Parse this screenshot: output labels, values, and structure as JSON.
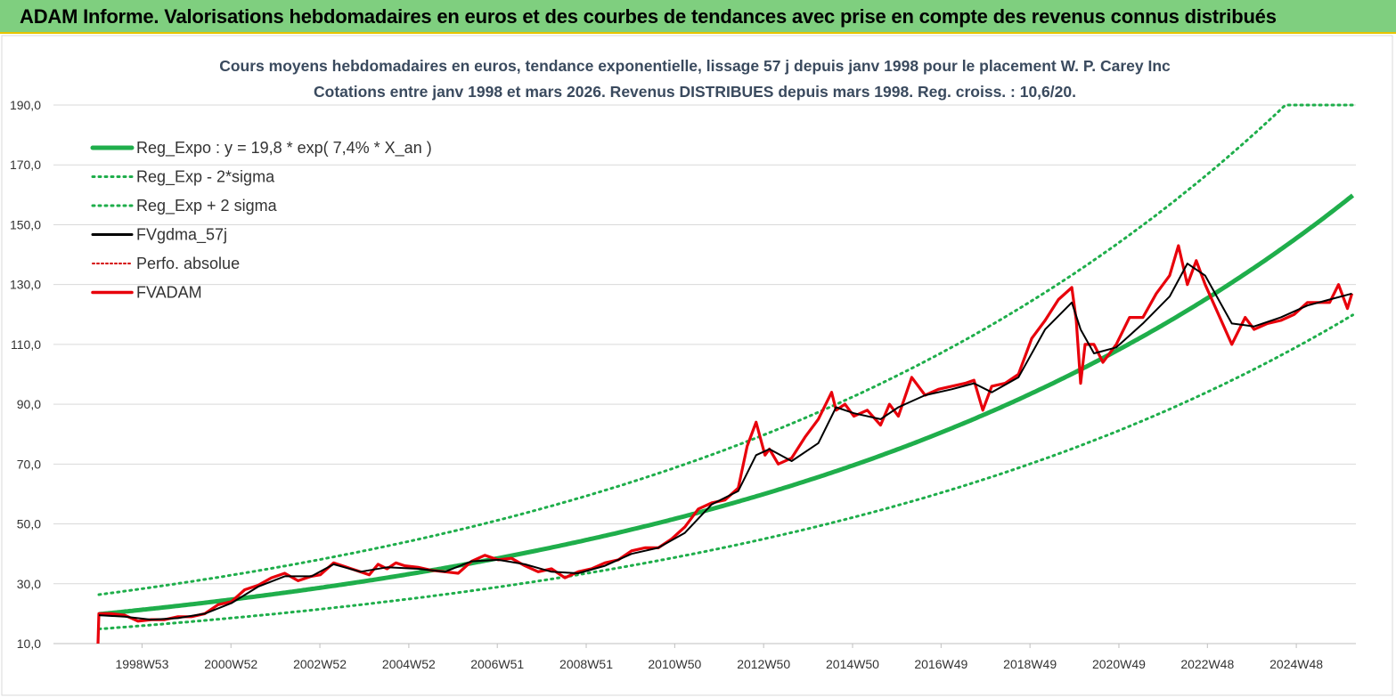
{
  "banner": {
    "title": "ADAM Informe. Valorisations hebdomadaires en euros et des courbes de tendances avec prise en compte des revenus connus distribués"
  },
  "colors": {
    "banner_bg": "#7fcf7f",
    "banner_border": "#e8c400",
    "reg_expo": "#1fae4b",
    "sigma_bands": "#1fae4b",
    "fvgdma": "#000000",
    "perfo": "#d40000",
    "fvadam": "#e8000b"
  },
  "chart_data": {
    "type": "line",
    "title_lines": [
      "Cours moyens hebdomadaires en euros, tendance exponentielle, lissage 57 j depuis janv 1998 pour le placement W. P. Carey Inc",
      "Cotations entre janv 1998 et mars 2026. Revenus DISTRIBUES depuis mars 1998. Reg. croiss. : 10,6/20."
    ],
    "ylim": [
      10,
      190
    ],
    "y_ticks": [
      "10,0",
      "30,0",
      "50,0",
      "70,0",
      "90,0",
      "110,0",
      "130,0",
      "150,0",
      "170,0",
      "190,0"
    ],
    "y_tick_values": [
      10,
      30,
      50,
      70,
      90,
      110,
      130,
      150,
      170,
      190
    ],
    "x_range_years": [
      1998.0,
      2026.25
    ],
    "x_tick_labels": [
      "1998W53",
      "2000W52",
      "2002W52",
      "2004W52",
      "2006W51",
      "2008W51",
      "2010W50",
      "2012W50",
      "2014W50",
      "2016W49",
      "2018W49",
      "2020W49",
      "2022W48",
      "2024W48"
    ],
    "x_tick_years": [
      1998.99,
      2000.99,
      2002.99,
      2004.99,
      2006.98,
      2008.98,
      2010.97,
      2012.97,
      2014.97,
      2016.96,
      2018.96,
      2020.96,
      2022.95,
      2024.95
    ],
    "grid": "horizontal",
    "legend_position": "top-left",
    "legend": [
      {
        "label": "Reg_Expo : y = 19,8 * exp( 7,4% *  X_an )",
        "style": "solid-thick-green"
      },
      {
        "label": "Reg_Exp - 2*sigma",
        "style": "dotted-green"
      },
      {
        "label": "Reg_Exp + 2 sigma",
        "style": "dotted-green"
      },
      {
        "label": "FVgdma_57j",
        "style": "solid-black"
      },
      {
        "label": "Perfo. absolue",
        "style": "dotted-red"
      },
      {
        "label": "FVADAM",
        "style": "solid-red"
      }
    ],
    "regression": {
      "a": 19.8,
      "growth": 0.074,
      "lower_factor": 0.75,
      "upper_factor": 1.33,
      "upper_cap": 200
    },
    "series": [
      {
        "name": "FVADAM",
        "x": [
          1998.0,
          1998.02,
          1998.3,
          1998.6,
          1998.9,
          1999.2,
          1999.5,
          1999.8,
          2000.1,
          2000.4,
          2000.7,
          2001.0,
          2001.3,
          2001.6,
          2001.9,
          2002.2,
          2002.5,
          2002.8,
          2003.0,
          2003.3,
          2003.5,
          2003.7,
          2003.9,
          2004.1,
          2004.3,
          2004.5,
          2004.7,
          2004.9,
          2005.2,
          2005.5,
          2005.8,
          2006.1,
          2006.4,
          2006.7,
          2007.0,
          2007.3,
          2007.6,
          2007.9,
          2008.2,
          2008.5,
          2008.8,
          2009.1,
          2009.4,
          2009.7,
          2010.0,
          2010.3,
          2010.6,
          2010.9,
          2011.2,
          2011.5,
          2011.8,
          2012.1,
          2012.4,
          2012.6,
          2012.8,
          2013.0,
          2013.1,
          2013.3,
          2013.6,
          2013.9,
          2014.2,
          2014.5,
          2014.6,
          2014.8,
          2015.0,
          2015.3,
          2015.6,
          2015.8,
          2016.0,
          2016.3,
          2016.6,
          2016.9,
          2017.2,
          2017.5,
          2017.7,
          2017.9,
          2018.1,
          2018.4,
          2018.7,
          2019.0,
          2019.3,
          2019.6,
          2019.9,
          2020.0,
          2020.1,
          2020.2,
          2020.4,
          2020.6,
          2020.9,
          2021.2,
          2021.5,
          2021.8,
          2022.1,
          2022.3,
          2022.5,
          2022.7,
          2022.9,
          2023.2,
          2023.5,
          2023.8,
          2024.0,
          2024.3,
          2024.6,
          2024.9,
          2025.2,
          2025.5,
          2025.7,
          2025.9,
          2026.1,
          2026.2
        ],
        "y": [
          10,
          20,
          20,
          19.5,
          17.5,
          18,
          18,
          19,
          19,
          20,
          23,
          24,
          28,
          29.5,
          32,
          33.5,
          31,
          32.5,
          33,
          37,
          36,
          35,
          34,
          33,
          36.5,
          35,
          37,
          36,
          35.5,
          34.5,
          34,
          33.5,
          37.5,
          39.5,
          38,
          38.5,
          36,
          34,
          35,
          32,
          34,
          35,
          37,
          38,
          41,
          42,
          42,
          45,
          49,
          55,
          57,
          58,
          62,
          76,
          84,
          73,
          75,
          70,
          72,
          79,
          85,
          94,
          88,
          90,
          86,
          88,
          83,
          90,
          86,
          99,
          93,
          95,
          96,
          97,
          98,
          88,
          96,
          97,
          100,
          112,
          118,
          125,
          129,
          118,
          97,
          110,
          110,
          104,
          110,
          119,
          119,
          127,
          133,
          143,
          130,
          138,
          130,
          120,
          110,
          119,
          115,
          117,
          118,
          120,
          124,
          124,
          124,
          130,
          122,
          127
        ]
      },
      {
        "name": "FVgdma_57j",
        "x": [
          1998.02,
          1998.6,
          1999.2,
          1999.8,
          2000.4,
          2001.0,
          2001.6,
          2002.2,
          2002.8,
          2003.3,
          2003.9,
          2004.5,
          2005.2,
          2005.8,
          2006.4,
          2007.0,
          2007.6,
          2008.2,
          2008.8,
          2009.4,
          2010.0,
          2010.6,
          2011.2,
          2011.8,
          2012.4,
          2012.8,
          2013.1,
          2013.6,
          2014.2,
          2014.6,
          2015.0,
          2015.6,
          2016.0,
          2016.6,
          2017.2,
          2017.7,
          2018.1,
          2018.7,
          2019.3,
          2019.9,
          2020.1,
          2020.4,
          2020.9,
          2021.5,
          2022.1,
          2022.5,
          2022.9,
          2023.5,
          2024.0,
          2024.6,
          2025.2,
          2025.7,
          2026.2
        ],
        "y": [
          19.5,
          19,
          18,
          18.5,
          20,
          23.5,
          29,
          32.5,
          32.5,
          36.5,
          34,
          35.5,
          35,
          34,
          37.5,
          38,
          36.5,
          34,
          33.5,
          36,
          40,
          42,
          47,
          56.5,
          61,
          73,
          75,
          71,
          77,
          89,
          87,
          85,
          89,
          93,
          95,
          97,
          94,
          99,
          115,
          124,
          115,
          107,
          109,
          117,
          126,
          137,
          133,
          117,
          116,
          119,
          123,
          125,
          127
        ]
      }
    ]
  }
}
